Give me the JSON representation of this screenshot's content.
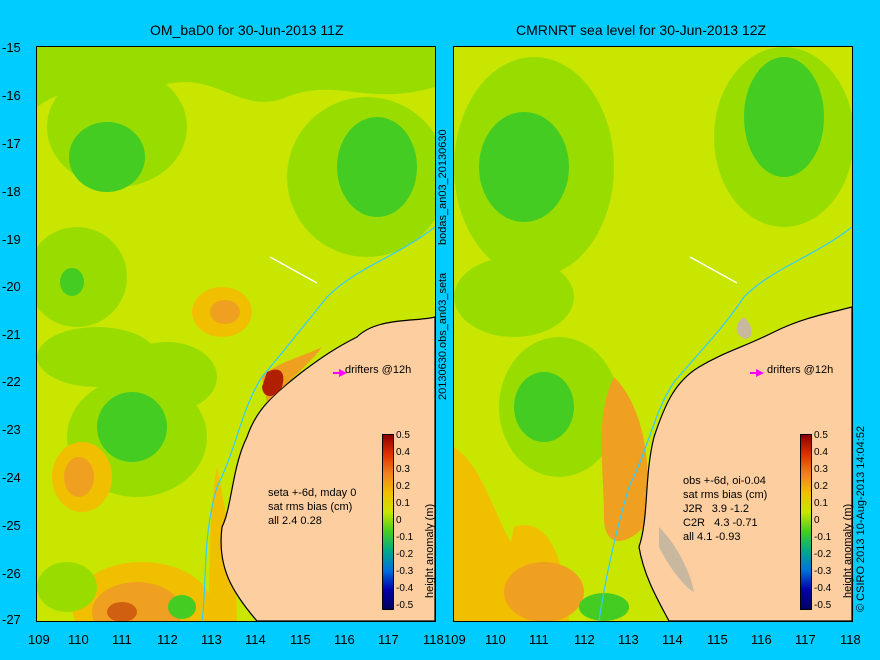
{
  "left_title": "OM_baD0 for 30-Jun-2013 11Z",
  "right_title": "CMRNRT sea level  for 30-Jun-2013 12Z",
  "y_ticks": [
    "-15",
    "-16",
    "-17",
    "-18",
    "-19",
    "-20",
    "-21",
    "-22",
    "-23",
    "-24",
    "-25",
    "-26",
    "-27"
  ],
  "x_ticks": [
    "109",
    "110",
    "111",
    "112",
    "113",
    "114",
    "115",
    "116",
    "117",
    "118"
  ],
  "left_info": "seta +-6d, mday 0\nsat rms bias (cm)\nall 2.4 0.28",
  "right_info": "obs +-6d, oi-0.04\nsat rms bias (cm)\nJ2R   3.9 -1.2\nC2R   4.3 -0.71\nall 4.1 -0.93",
  "drifters_label": "drifters @12h",
  "colorbar_ticks": [
    "0.5",
    "0.4",
    "0.3",
    "0.2",
    "0.1",
    "0",
    "-0.1",
    "-0.2",
    "-0.3",
    "-0.4",
    "-0.5"
  ],
  "colorbar_label": "height anomaly (m)",
  "vertical_text_top": "bodas_an03_20130630",
  "vertical_text_mid": "20130630.obs_an03_seta",
  "copyright": "© CSIRO 2013   10-Aug-2013 14:04:52",
  "colors": {
    "background": "#00ccff",
    "land": "#fdcfa0",
    "coast": "#000000",
    "current_line": "#33ccff"
  }
}
